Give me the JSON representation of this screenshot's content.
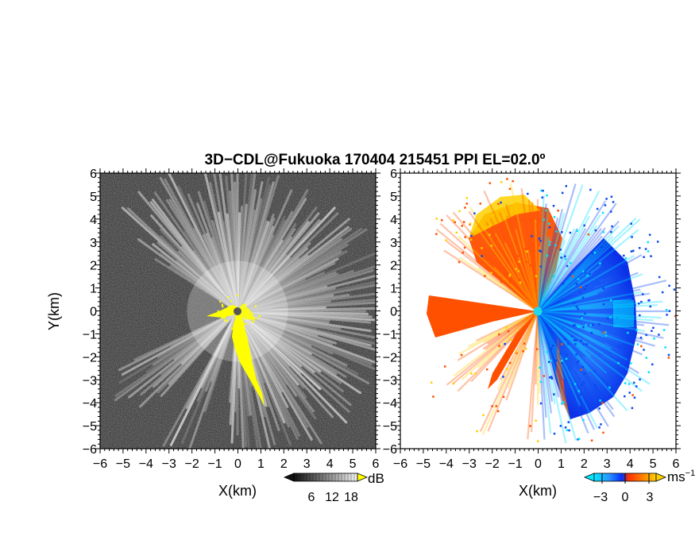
{
  "chart_data": {
    "type": "heatmap",
    "title": "3D−CDL@Fukuoka 170404 215451 PPI EL=02.0º",
    "panels": [
      {
        "name": "reflectivity",
        "xlabel": "X(km)",
        "ylabel": "Y(km)",
        "xlim": [
          -6,
          6
        ],
        "ylim": [
          -6,
          6
        ],
        "x_ticks": [
          "−6",
          "−5",
          "−4",
          "−3",
          "−2",
          "−1",
          "0",
          "1",
          "2",
          "3",
          "4",
          "5",
          "6"
        ],
        "y_ticks": [
          "−6",
          "−5",
          "−4",
          "−3",
          "−2",
          "−1",
          "0",
          "1",
          "2",
          "3",
          "4",
          "5",
          "6"
        ],
        "colorbar": {
          "unit": "dB",
          "ticks": [
            "6",
            "12",
            "18"
          ],
          "scale": "grayscale",
          "min": 6,
          "max": 18
        },
        "highlight_color": "#ffff00",
        "radar_origin": [
          0,
          0
        ],
        "gap_sectors_deg": [
          [
            148,
            205
          ],
          [
            228,
            240
          ],
          [
            252,
            265
          ]
        ]
      },
      {
        "name": "velocity",
        "xlabel": "X(km)",
        "xlim": [
          -6,
          6
        ],
        "ylim": [
          -6,
          6
        ],
        "x_ticks": [
          "−6",
          "−5",
          "−4",
          "−3",
          "−2",
          "−1",
          "0",
          "1",
          "2",
          "3",
          "4",
          "5",
          "6"
        ],
        "y_ticks": [
          "−6",
          "−5",
          "−4",
          "−3",
          "−2",
          "−1",
          "0",
          "1",
          "2",
          "3",
          "4",
          "5",
          "6"
        ],
        "colorbar": {
          "unit": "ms",
          "unit_exponent": "−1",
          "ticks": [
            "−3",
            "0",
            "3"
          ],
          "min": -4,
          "max": 4,
          "colors": [
            "#00e0ff",
            "#0064ff",
            "#ff3000",
            "#ffd000"
          ]
        },
        "radar_origin": [
          0,
          0
        ],
        "approaching_color": "#0a48f0",
        "receding_color": "#ff5000"
      }
    ]
  },
  "labels": {
    "title": "3D−CDL@Fukuoka 170404 215451 PPI EL=02.0º",
    "xlabel_left": "X(km)",
    "xlabel_right": "X(km)",
    "ylabel": "Y(km)",
    "cb_left_unit": "dB",
    "cb_left_ticks": [
      "6",
      "12",
      "18"
    ],
    "cb_right_unit": "ms",
    "cb_right_exp": "−1",
    "cb_right_ticks": [
      "−3",
      "0",
      "3"
    ]
  }
}
